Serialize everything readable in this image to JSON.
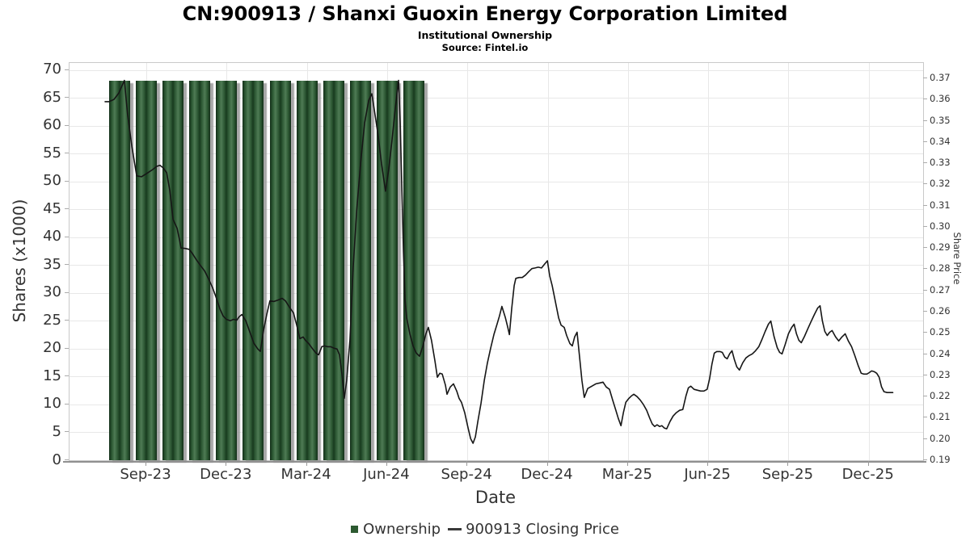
{
  "header": {
    "title": "CN:900913 / Shanxi Guoxin Energy Corporation Limited",
    "subtitle": "Institutional Ownership",
    "source": "Source: Fintel.io"
  },
  "legend": {
    "ownership_label": "Ownership",
    "price_label": "900913 Closing Price"
  },
  "colors": {
    "bar_green": "#2d5a31",
    "bar_shadow": "#919191",
    "line_black": "#161616",
    "grid": "#e8e8e8",
    "legend_swatch": "#2d5a31"
  },
  "axes": {
    "x": {
      "title": "Date",
      "ticks": [
        {
          "label": "Sep-23",
          "t": 3
        },
        {
          "label": "Dec-23",
          "t": 6
        },
        {
          "label": "Mar-24",
          "t": 9
        },
        {
          "label": "Jun-24",
          "t": 12
        },
        {
          "label": "Sep-24",
          "t": 15
        },
        {
          "label": "Dec-24",
          "t": 18
        },
        {
          "label": "Mar-25",
          "t": 21
        },
        {
          "label": "Jun-25",
          "t": 24
        },
        {
          "label": "Sep-25",
          "t": 27
        },
        {
          "label": "Dec-25",
          "t": 30
        }
      ]
    },
    "left": {
      "title": "Shares (x1000)",
      "ticks": [
        0,
        5,
        10,
        15,
        20,
        25,
        30,
        35,
        40,
        45,
        50,
        55,
        60,
        65,
        70
      ],
      "range": [
        0,
        70
      ]
    },
    "right": {
      "title": "Share Price",
      "ticks": [
        0.19,
        0.2,
        0.21,
        0.22,
        0.23,
        0.24,
        0.25,
        0.26,
        0.27,
        0.28,
        0.29,
        0.3,
        0.31,
        0.32,
        0.33,
        0.34,
        0.35,
        0.36,
        0.37
      ],
      "range": [
        0.19,
        0.37
      ]
    }
  },
  "chart_data": {
    "type": "combo",
    "title": "CN:900913 / Shanxi Guoxin Energy Corporation Limited",
    "subtitle": "Institutional Ownership",
    "xlabel": "Date",
    "x_unit": "t = months since 2023-06-01 (t=3 is Sep-2023, t=30 is Dec-2025)",
    "bars": {
      "name": "Ownership",
      "type": "bar",
      "axis": "left",
      "unit": "shares x1000",
      "months": [
        "Aug-23",
        "Sep-23",
        "Oct-23",
        "Nov-23",
        "Dec-23",
        "Jan-24",
        "Feb-24",
        "Mar-24",
        "Apr-24",
        "May-24",
        "Jun-24",
        "Jul-24"
      ],
      "t": [
        2,
        3,
        4,
        5,
        6,
        7,
        8,
        9,
        10,
        11,
        12,
        13
      ],
      "values": [
        68,
        68,
        68,
        68,
        68,
        68,
        68,
        68,
        68,
        68,
        68,
        68
      ]
    },
    "line": {
      "name": "900913 Closing Price",
      "type": "line",
      "axis": "right",
      "unit": "share price",
      "points": [
        [
          1.46,
          0.359
        ],
        [
          1.61,
          0.359
        ],
        [
          1.79,
          0.36
        ],
        [
          1.97,
          0.363
        ],
        [
          2.18,
          0.369
        ],
        [
          2.3,
          0.353
        ],
        [
          2.46,
          0.338
        ],
        [
          2.64,
          0.324
        ],
        [
          2.82,
          0.3236
        ],
        [
          3.0,
          0.325
        ],
        [
          3.24,
          0.327
        ],
        [
          3.39,
          0.3285
        ],
        [
          3.51,
          0.329
        ],
        [
          3.63,
          0.3278
        ],
        [
          3.76,
          0.3255
        ],
        [
          3.88,
          0.317
        ],
        [
          4.0,
          0.3035
        ],
        [
          4.15,
          0.2993
        ],
        [
          4.24,
          0.294
        ],
        [
          4.3,
          0.29
        ],
        [
          4.45,
          0.2898
        ],
        [
          4.6,
          0.2894
        ],
        [
          4.72,
          0.2875
        ],
        [
          4.87,
          0.2845
        ],
        [
          5.02,
          0.2818
        ],
        [
          5.18,
          0.2792
        ],
        [
          5.33,
          0.2754
        ],
        [
          5.48,
          0.2712
        ],
        [
          5.6,
          0.267
        ],
        [
          5.75,
          0.2614
        ],
        [
          5.87,
          0.258
        ],
        [
          5.99,
          0.2564
        ],
        [
          6.14,
          0.2557
        ],
        [
          6.26,
          0.2564
        ],
        [
          6.38,
          0.256
        ],
        [
          6.47,
          0.2576
        ],
        [
          6.57,
          0.2587
        ],
        [
          6.72,
          0.2557
        ],
        [
          6.87,
          0.2504
        ],
        [
          7.02,
          0.2451
        ],
        [
          7.17,
          0.2424
        ],
        [
          7.26,
          0.2413
        ],
        [
          7.38,
          0.2511
        ],
        [
          7.5,
          0.2587
        ],
        [
          7.62,
          0.2651
        ],
        [
          7.77,
          0.2648
        ],
        [
          7.92,
          0.2655
        ],
        [
          8.08,
          0.2663
        ],
        [
          8.2,
          0.2651
        ],
        [
          8.35,
          0.2621
        ],
        [
          8.5,
          0.2594
        ],
        [
          8.62,
          0.2537
        ],
        [
          8.74,
          0.2473
        ],
        [
          8.86,
          0.2481
        ],
        [
          8.95,
          0.2465
        ],
        [
          9.07,
          0.245
        ],
        [
          9.22,
          0.2424
        ],
        [
          9.34,
          0.2405
        ],
        [
          9.44,
          0.2397
        ],
        [
          9.56,
          0.2435
        ],
        [
          9.65,
          0.2439
        ],
        [
          9.77,
          0.2435
        ],
        [
          9.89,
          0.2435
        ],
        [
          10.01,
          0.2428
        ],
        [
          10.13,
          0.2424
        ],
        [
          10.22,
          0.2397
        ],
        [
          10.31,
          0.2306
        ],
        [
          10.4,
          0.2192
        ],
        [
          10.49,
          0.2276
        ],
        [
          10.61,
          0.2465
        ],
        [
          10.73,
          0.2807
        ],
        [
          10.86,
          0.3073
        ],
        [
          11.01,
          0.33
        ],
        [
          11.16,
          0.349
        ],
        [
          11.31,
          0.3596
        ],
        [
          11.43,
          0.3627
        ],
        [
          11.55,
          0.3528
        ],
        [
          11.67,
          0.3425
        ],
        [
          11.79,
          0.33
        ],
        [
          11.94,
          0.3168
        ],
        [
          12.06,
          0.327
        ],
        [
          12.18,
          0.3406
        ],
        [
          12.31,
          0.3566
        ],
        [
          12.43,
          0.369
        ],
        [
          12.49,
          0.349
        ],
        [
          12.55,
          0.3187
        ],
        [
          12.61,
          0.2883
        ],
        [
          12.67,
          0.2655
        ],
        [
          12.73,
          0.2571
        ],
        [
          12.85,
          0.2496
        ],
        [
          12.97,
          0.2439
        ],
        [
          13.09,
          0.2405
        ],
        [
          13.21,
          0.239
        ],
        [
          13.33,
          0.2435
        ],
        [
          13.45,
          0.2496
        ],
        [
          13.54,
          0.2526
        ],
        [
          13.66,
          0.2465
        ],
        [
          13.79,
          0.2367
        ],
        [
          13.88,
          0.2291
        ],
        [
          13.97,
          0.231
        ],
        [
          14.06,
          0.2306
        ],
        [
          14.18,
          0.2253
        ],
        [
          14.24,
          0.2211
        ],
        [
          14.36,
          0.2245
        ],
        [
          14.48,
          0.226
        ],
        [
          14.6,
          0.2226
        ],
        [
          14.69,
          0.2192
        ],
        [
          14.78,
          0.2173
        ],
        [
          14.9,
          0.2124
        ],
        [
          15.02,
          0.2055
        ],
        [
          15.12,
          0.2002
        ],
        [
          15.21,
          0.198
        ],
        [
          15.3,
          0.201
        ],
        [
          15.39,
          0.2082
        ],
        [
          15.51,
          0.2169
        ],
        [
          15.63,
          0.2276
        ],
        [
          15.75,
          0.2359
        ],
        [
          15.87,
          0.2428
        ],
        [
          15.99,
          0.2492
        ],
        [
          16.11,
          0.2541
        ],
        [
          16.2,
          0.258
        ],
        [
          16.29,
          0.2625
        ],
        [
          16.42,
          0.2572
        ],
        [
          16.51,
          0.2526
        ],
        [
          16.57,
          0.2492
        ],
        [
          16.66,
          0.2617
        ],
        [
          16.75,
          0.2723
        ],
        [
          16.81,
          0.2757
        ],
        [
          16.93,
          0.2761
        ],
        [
          17.05,
          0.2761
        ],
        [
          17.17,
          0.2772
        ],
        [
          17.29,
          0.2788
        ],
        [
          17.41,
          0.2803
        ],
        [
          17.53,
          0.2806
        ],
        [
          17.65,
          0.281
        ],
        [
          17.77,
          0.2806
        ],
        [
          17.89,
          0.2825
        ],
        [
          17.99,
          0.284
        ],
        [
          18.08,
          0.2768
        ],
        [
          18.17,
          0.2723
        ],
        [
          18.29,
          0.2647
        ],
        [
          18.41,
          0.2571
        ],
        [
          18.5,
          0.2537
        ],
        [
          18.62,
          0.2526
        ],
        [
          18.71,
          0.2488
        ],
        [
          18.83,
          0.245
        ],
        [
          18.92,
          0.2439
        ],
        [
          19.01,
          0.2481
        ],
        [
          19.1,
          0.2503
        ],
        [
          19.19,
          0.239
        ],
        [
          19.28,
          0.2276
        ],
        [
          19.37,
          0.2196
        ],
        [
          19.5,
          0.2238
        ],
        [
          19.65,
          0.2249
        ],
        [
          19.8,
          0.226
        ],
        [
          19.95,
          0.2264
        ],
        [
          20.07,
          0.2268
        ],
        [
          20.19,
          0.2245
        ],
        [
          20.31,
          0.2234
        ],
        [
          20.43,
          0.2184
        ],
        [
          20.55,
          0.2135
        ],
        [
          20.64,
          0.2097
        ],
        [
          20.74,
          0.2063
        ],
        [
          20.83,
          0.2124
        ],
        [
          20.92,
          0.2173
        ],
        [
          21.04,
          0.2192
        ],
        [
          21.13,
          0.2203
        ],
        [
          21.22,
          0.2211
        ],
        [
          21.34,
          0.22
        ],
        [
          21.46,
          0.2184
        ],
        [
          21.58,
          0.2162
        ],
        [
          21.7,
          0.2135
        ],
        [
          21.82,
          0.2097
        ],
        [
          21.91,
          0.2071
        ],
        [
          22.0,
          0.2059
        ],
        [
          22.09,
          0.2067
        ],
        [
          22.18,
          0.2059
        ],
        [
          22.27,
          0.2063
        ],
        [
          22.36,
          0.2052
        ],
        [
          22.45,
          0.2048
        ],
        [
          22.57,
          0.2082
        ],
        [
          22.69,
          0.2108
        ],
        [
          22.81,
          0.2124
        ],
        [
          22.93,
          0.2135
        ],
        [
          23.05,
          0.2139
        ],
        [
          23.17,
          0.2203
        ],
        [
          23.26,
          0.2241
        ],
        [
          23.35,
          0.2249
        ],
        [
          23.47,
          0.2234
        ],
        [
          23.6,
          0.223
        ],
        [
          23.72,
          0.2226
        ],
        [
          23.84,
          0.2226
        ],
        [
          23.96,
          0.2234
        ],
        [
          24.05,
          0.2283
        ],
        [
          24.14,
          0.2352
        ],
        [
          24.23,
          0.2405
        ],
        [
          24.32,
          0.2412
        ],
        [
          24.44,
          0.2412
        ],
        [
          24.53,
          0.2408
        ],
        [
          24.62,
          0.2386
        ],
        [
          24.71,
          0.2378
        ],
        [
          24.8,
          0.2401
        ],
        [
          24.89,
          0.2416
        ],
        [
          24.98,
          0.2374
        ],
        [
          25.07,
          0.234
        ],
        [
          25.17,
          0.2325
        ],
        [
          25.29,
          0.2359
        ],
        [
          25.41,
          0.2382
        ],
        [
          25.53,
          0.2393
        ],
        [
          25.65,
          0.2401
        ],
        [
          25.77,
          0.2416
        ],
        [
          25.89,
          0.2435
        ],
        [
          26.01,
          0.2469
        ],
        [
          26.13,
          0.2507
        ],
        [
          26.25,
          0.2541
        ],
        [
          26.34,
          0.2556
        ],
        [
          26.46,
          0.2484
        ],
        [
          26.58,
          0.2431
        ],
        [
          26.67,
          0.2408
        ],
        [
          26.76,
          0.2401
        ],
        [
          26.88,
          0.2446
        ],
        [
          27.0,
          0.2496
        ],
        [
          27.12,
          0.2526
        ],
        [
          27.21,
          0.2541
        ],
        [
          27.3,
          0.2496
        ],
        [
          27.39,
          0.2465
        ],
        [
          27.48,
          0.2454
        ],
        [
          27.6,
          0.2484
        ],
        [
          27.72,
          0.2518
        ],
        [
          27.84,
          0.2552
        ],
        [
          27.97,
          0.2587
        ],
        [
          28.09,
          0.2617
        ],
        [
          28.18,
          0.2628
        ],
        [
          28.27,
          0.2556
        ],
        [
          28.36,
          0.2507
        ],
        [
          28.45,
          0.2488
        ],
        [
          28.54,
          0.2503
        ],
        [
          28.63,
          0.2511
        ],
        [
          28.76,
          0.2481
        ],
        [
          28.88,
          0.2462
        ],
        [
          29.0,
          0.2481
        ],
        [
          29.12,
          0.2496
        ],
        [
          29.24,
          0.2462
        ],
        [
          29.36,
          0.2435
        ],
        [
          29.48,
          0.2393
        ],
        [
          29.6,
          0.2348
        ],
        [
          29.72,
          0.231
        ],
        [
          29.81,
          0.2306
        ],
        [
          29.93,
          0.2306
        ],
        [
          30.02,
          0.2313
        ],
        [
          30.11,
          0.2321
        ],
        [
          30.21,
          0.2317
        ],
        [
          30.3,
          0.231
        ],
        [
          30.39,
          0.2291
        ],
        [
          30.48,
          0.2245
        ],
        [
          30.57,
          0.2223
        ],
        [
          30.69,
          0.2219
        ],
        [
          30.81,
          0.2219
        ],
        [
          30.9,
          0.2219
        ]
      ]
    }
  }
}
